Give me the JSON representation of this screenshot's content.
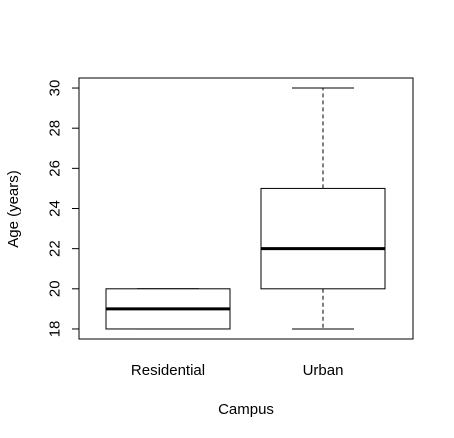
{
  "chart_data": {
    "type": "box",
    "title": "",
    "xlabel": "Campus",
    "ylabel": "Age (years)",
    "ylim": [
      17.5,
      30.5
    ],
    "yticks": [
      18,
      20,
      22,
      24,
      26,
      28,
      30
    ],
    "categories": [
      "Residential",
      "Urban"
    ],
    "boxes": [
      {
        "min": 18,
        "q1": 18,
        "median": 19,
        "q3": 20,
        "max": 20
      },
      {
        "min": 18,
        "q1": 20,
        "median": 22,
        "q3": 25,
        "max": 30
      }
    ],
    "grid": false,
    "legend": "none",
    "colors": {
      "box_fill": "#ffffff",
      "stroke": "#000000"
    }
  }
}
